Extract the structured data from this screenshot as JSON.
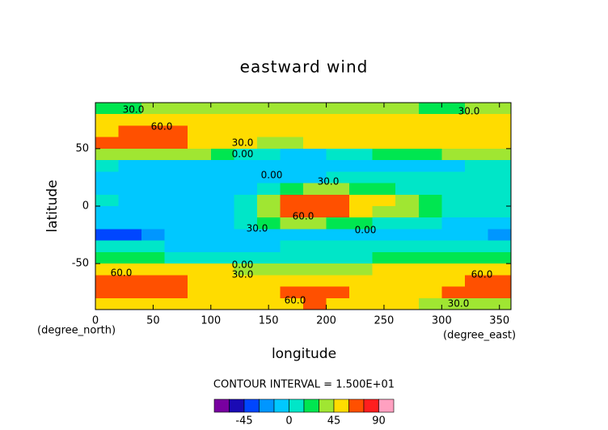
{
  "chart_data": {
    "type": "contour",
    "title": "eastward wind",
    "x_label": "longitude",
    "y_label": "latitude",
    "x_unit": "(degree_east)",
    "y_unit": "(degree_north)",
    "xlim": [
      0,
      360
    ],
    "ylim": [
      -90,
      90
    ],
    "xticks": [
      0,
      50,
      100,
      150,
      200,
      250,
      300,
      350
    ],
    "yticks": [
      -50,
      0,
      50
    ],
    "x": [
      10,
      30,
      50,
      70,
      90,
      110,
      130,
      150,
      170,
      190,
      210,
      230,
      250,
      270,
      290,
      310,
      330,
      350
    ],
    "y": [
      85,
      75,
      65,
      55,
      45,
      35,
      25,
      15,
      5,
      -5,
      -15,
      -25,
      -35,
      -45,
      -55,
      -65,
      -75,
      -85
    ],
    "z": [
      [
        25,
        25,
        35,
        40,
        40,
        40,
        35,
        30,
        30,
        30,
        30,
        30,
        30,
        30,
        25,
        25,
        30,
        30
      ],
      [
        45,
        45,
        50,
        50,
        50,
        50,
        50,
        50,
        50,
        50,
        50,
        50,
        50,
        50,
        50,
        50,
        50,
        45
      ],
      [
        55,
        62,
        65,
        64,
        58,
        55,
        52,
        52,
        52,
        52,
        52,
        52,
        52,
        52,
        52,
        52,
        52,
        55
      ],
      [
        62,
        66,
        68,
        65,
        58,
        50,
        46,
        44,
        44,
        46,
        48,
        48,
        48,
        48,
        50,
        52,
        55,
        58
      ],
      [
        38,
        40,
        40,
        38,
        32,
        22,
        12,
        5,
        -2,
        -5,
        0,
        8,
        15,
        20,
        25,
        30,
        32,
        35
      ],
      [
        0,
        -2,
        -3,
        -5,
        -5,
        -5,
        -8,
        -8,
        -8,
        -8,
        -8,
        -8,
        -8,
        -5,
        -3,
        -2,
        0,
        2
      ],
      [
        -5,
        -5,
        -8,
        -8,
        -8,
        -8,
        -8,
        -5,
        -2,
        -2,
        5,
        8,
        5,
        0,
        2,
        8,
        8,
        5
      ],
      [
        -5,
        -8,
        -8,
        -8,
        -8,
        -8,
        -2,
        10,
        25,
        40,
        35,
        28,
        15,
        5,
        2,
        10,
        10,
        5
      ],
      [
        5,
        -5,
        -8,
        -8,
        -8,
        -3,
        8,
        30,
        62,
        70,
        68,
        55,
        45,
        35,
        18,
        10,
        10,
        8
      ],
      [
        -3,
        -8,
        -10,
        -10,
        -8,
        -2,
        10,
        32,
        62,
        72,
        65,
        50,
        42,
        30,
        15,
        8,
        5,
        2
      ],
      [
        -10,
        -15,
        -12,
        -10,
        -8,
        -5,
        2,
        15,
        30,
        32,
        28,
        20,
        12,
        5,
        0,
        -2,
        -5,
        -8
      ],
      [
        -35,
        -35,
        -20,
        -10,
        -8,
        -8,
        -8,
        -5,
        -5,
        -5,
        -5,
        -5,
        -5,
        -5,
        -5,
        -5,
        -8,
        -20
      ],
      [
        2,
        0,
        0,
        -2,
        -2,
        -3,
        -3,
        -3,
        0,
        2,
        2,
        2,
        5,
        5,
        5,
        5,
        5,
        3
      ],
      [
        20,
        18,
        15,
        12,
        10,
        5,
        2,
        0,
        5,
        10,
        12,
        12,
        15,
        15,
        18,
        20,
        22,
        22
      ],
      [
        48,
        50,
        50,
        48,
        45,
        45,
        42,
        40,
        40,
        42,
        42,
        44,
        45,
        46,
        48,
        48,
        50,
        50
      ],
      [
        62,
        66,
        66,
        62,
        55,
        52,
        50,
        50,
        50,
        52,
        52,
        52,
        52,
        52,
        55,
        58,
        62,
        64
      ],
      [
        64,
        66,
        65,
        60,
        55,
        52,
        52,
        58,
        64,
        66,
        64,
        56,
        52,
        52,
        55,
        60,
        64,
        66
      ],
      [
        50,
        50,
        50,
        48,
        48,
        48,
        50,
        55,
        58,
        60,
        55,
        50,
        48,
        45,
        40,
        35,
        30,
        30
      ]
    ],
    "levels": [
      -75,
      -60,
      -45,
      -30,
      -15,
      0,
      15,
      30,
      45,
      60,
      75,
      90,
      105
    ],
    "colors": [
      "#7800a0",
      "#1a0ab4",
      "#0046ff",
      "#0096ff",
      "#00c8ff",
      "#00e6c8",
      "#00e650",
      "#a0e632",
      "#ffdc00",
      "#ff5000",
      "#ff1e1e",
      "#ffa0c0"
    ],
    "colorbar_ticks": [
      -45,
      0,
      45,
      90
    ],
    "contour_interval": "CONTOUR INTERVAL = 1.500E+01",
    "contour_labels": [
      "30.0",
      "60.0",
      "30.0",
      "0.00",
      "0.00",
      "30.0",
      "60.0",
      "30.0",
      "0.00",
      "0.00",
      "30.0",
      "60.0",
      "60.0",
      "30.0",
      "60.0",
      "30.0"
    ]
  }
}
